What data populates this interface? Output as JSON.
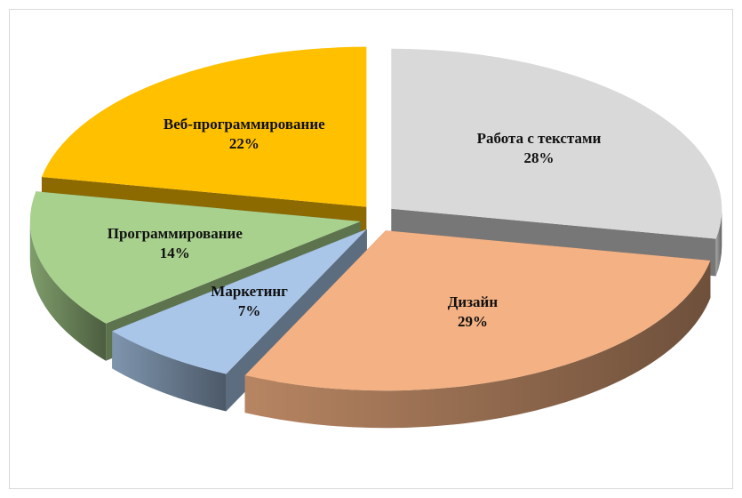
{
  "chart_data": {
    "type": "pie",
    "categories": [
      "Работа с текстами",
      "Дизайн",
      "Маркетинг",
      "Программирование",
      "Веб-программирование"
    ],
    "values": [
      28,
      29,
      7,
      14,
      22
    ],
    "value_labels": [
      "28%",
      "29%",
      "7%",
      "14%",
      "22%"
    ],
    "colors": [
      "#d9d9d9",
      "#f4b183",
      "#a9c6e8",
      "#a9d18e",
      "#ffc000"
    ]
  }
}
